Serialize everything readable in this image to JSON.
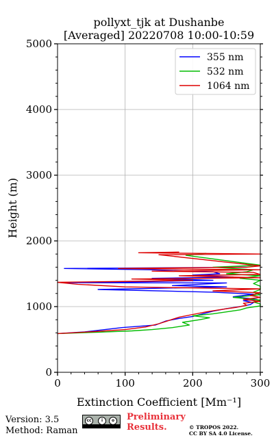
{
  "chart_data": {
    "type": "line",
    "title": "pollyxt_tjk at Dushanbe",
    "subtitle": "[Averaged] 20220708 10:00-10:59",
    "xlabel": "Extinction Coefficient [Mm⁻¹]",
    "ylabel": "Height (m)",
    "xlim": [
      0,
      300
    ],
    "ylim": [
      0,
      5000
    ],
    "xticks": [
      0,
      100,
      200,
      300
    ],
    "yticks": [
      0,
      1000,
      2000,
      3000,
      4000,
      5000
    ],
    "grid": true,
    "legend_position": "top-right",
    "series": [
      {
        "name": "355 nm",
        "color": "#0000ff",
        "points": [
          [
            0,
            590
          ],
          [
            40,
            615
          ],
          [
            70,
            650
          ],
          [
            95,
            680
          ],
          [
            120,
            700
          ],
          [
            145,
            720
          ],
          [
            160,
            780
          ],
          [
            180,
            820
          ],
          [
            200,
            850
          ],
          [
            215,
            890
          ],
          [
            230,
            930
          ],
          [
            250,
            970
          ],
          [
            270,
            1000
          ],
          [
            285,
            1030
          ],
          [
            290,
            1060
          ],
          [
            275,
            1090
          ],
          [
            295,
            1110
          ],
          [
            260,
            1150
          ],
          [
            290,
            1190
          ],
          [
            230,
            1220
          ],
          [
            60,
            1260
          ],
          [
            250,
            1300
          ],
          [
            170,
            1320
          ],
          [
            250,
            1360
          ],
          [
            10,
            1365
          ],
          [
            130,
            1380
          ],
          [
            230,
            1400
          ],
          [
            140,
            1430
          ],
          [
            260,
            1450
          ],
          [
            200,
            1480
          ],
          [
            240,
            1500
          ],
          [
            230,
            1530
          ],
          [
            140,
            1560
          ],
          [
            10,
            1580
          ],
          [
            280,
            1600
          ]
        ]
      },
      {
        "name": "532 nm",
        "color": "#00bb00",
        "points": [
          [
            0,
            590
          ],
          [
            60,
            610
          ],
          [
            110,
            630
          ],
          [
            140,
            650
          ],
          [
            170,
            680
          ],
          [
            195,
            720
          ],
          [
            185,
            760
          ],
          [
            210,
            800
          ],
          [
            225,
            830
          ],
          [
            200,
            860
          ],
          [
            230,
            890
          ],
          [
            250,
            920
          ],
          [
            270,
            950
          ],
          [
            280,
            980
          ],
          [
            300,
            1010
          ],
          [
            300,
            1040
          ],
          [
            290,
            1070
          ],
          [
            300,
            1100
          ],
          [
            260,
            1140
          ],
          [
            300,
            1180
          ],
          [
            290,
            1220
          ],
          [
            300,
            1260
          ],
          [
            300,
            1310
          ],
          [
            290,
            1350
          ],
          [
            300,
            1400
          ],
          [
            270,
            1430
          ],
          [
            300,
            1470
          ],
          [
            250,
            1500
          ],
          [
            280,
            1530
          ],
          [
            290,
            1560
          ],
          [
            230,
            1600
          ],
          [
            300,
            1630
          ],
          [
            190,
            1780
          ],
          [
            220,
            1810
          ]
        ]
      },
      {
        "name": "1064 nm",
        "color": "#dd0000",
        "points": [
          [
            0,
            590
          ],
          [
            55,
            620
          ],
          [
            100,
            650
          ],
          [
            130,
            690
          ],
          [
            150,
            740
          ],
          [
            165,
            790
          ],
          [
            180,
            840
          ],
          [
            200,
            880
          ],
          [
            220,
            920
          ],
          [
            245,
            960
          ],
          [
            265,
            990
          ],
          [
            280,
            1020
          ],
          [
            275,
            1050
          ],
          [
            300,
            1080
          ],
          [
            275,
            1110
          ],
          [
            300,
            1140
          ],
          [
            285,
            1170
          ],
          [
            300,
            1210
          ],
          [
            230,
            1240
          ],
          [
            300,
            1270
          ],
          [
            100,
            1300
          ],
          [
            30,
            1340
          ],
          [
            0,
            1370
          ],
          [
            80,
            1380
          ],
          [
            200,
            1400
          ],
          [
            110,
            1420
          ],
          [
            300,
            1440
          ],
          [
            180,
            1470
          ],
          [
            300,
            1490
          ],
          [
            290,
            1520
          ],
          [
            140,
            1540
          ],
          [
            300,
            1560
          ],
          [
            90,
            1580
          ],
          [
            280,
            1600
          ],
          [
            300,
            1620
          ],
          [
            150,
            1790
          ],
          [
            300,
            1800
          ],
          [
            120,
            1820
          ],
          [
            180,
            1830
          ]
        ]
      }
    ]
  },
  "footer": {
    "version": "Version: 3.5",
    "method": "Method: Raman",
    "preliminary_line1": "Preliminary",
    "preliminary_line2": "Results.",
    "copyright_line1": "© TROPOS 2022.",
    "copyright_line2": "CC BY SA 4.0 License."
  },
  "license_icon": "cc-by-sa-badge"
}
